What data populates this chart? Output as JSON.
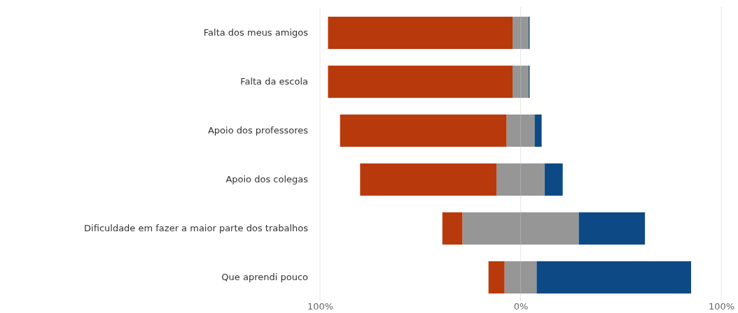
{
  "chart_data": {
    "type": "bar",
    "orientation": "horizontal",
    "stacked": true,
    "categories": [
      "Falta dos meus amigos",
      "Falta da escola",
      "Apoio dos professores",
      "Apoio dos colegas",
      "Dificuldade em fazer a maior parte dos trabalhos",
      "Que aprendi pouco"
    ],
    "series": [
      {
        "color": "#969696",
        "values": [
          -4,
          -4,
          -7,
          -12,
          -29,
          -8
        ]
      },
      {
        "color": "#b83a0c",
        "values": [
          -92,
          -92,
          -83,
          -68,
          -10,
          -8
        ]
      },
      {
        "color": "#969696",
        "values": [
          4,
          4,
          7,
          12,
          29,
          8
        ]
      },
      {
        "color": "#0d4a85",
        "values": [
          0.5,
          0.5,
          3.5,
          9,
          33,
          77
        ]
      }
    ],
    "xlim": [
      -100,
      100
    ],
    "xticks": [
      {
        "value": -100,
        "label": "100%"
      },
      {
        "value": 0,
        "label": "0%"
      },
      {
        "value": 100,
        "label": "100%"
      }
    ],
    "grid": "x"
  }
}
